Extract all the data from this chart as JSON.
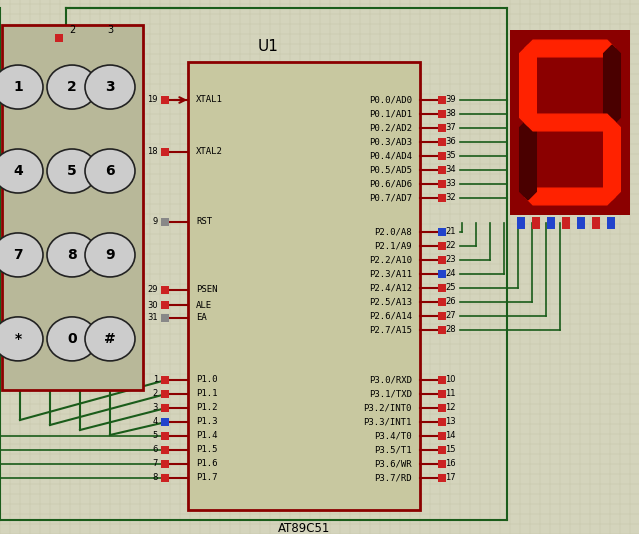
{
  "bg_color": "#d4d4bc",
  "grid_color": "#c4c4aa",
  "chip_color": "#c8c8a0",
  "chip_border": "#8b0000",
  "wire_color": "#1a5c1a",
  "keypad_color": "#b8b899",
  "keypad_border": "#8b0000",
  "seg_bg_color": "#8b0000",
  "seg_on_color": "#ff2200",
  "seg_off_color": "#4a0000",
  "pin_red": "#cc2222",
  "pin_blue": "#2244cc",
  "pin_gray": "#888888",
  "text_color": "#000000",
  "chip_label": "U1",
  "chip_sublabel": "AT89C51",
  "left_pins": [
    {
      "name": "XTAL1",
      "pin": "19",
      "row": 0,
      "arrow": true
    },
    {
      "name": "XTAL2",
      "pin": "18",
      "row": 1,
      "arrow": false
    },
    {
      "name": "RST",
      "pin": "9",
      "row": 2,
      "arrow": false
    },
    {
      "name": "PSEN",
      "pin": "29",
      "row": 3,
      "overbar": true
    },
    {
      "name": "ALE",
      "pin": "30",
      "row": 4,
      "overbar": true
    },
    {
      "name": "EA",
      "pin": "31",
      "row": 5,
      "overbar": true
    },
    {
      "name": "P1.0",
      "pin": "1",
      "row": 6
    },
    {
      "name": "P1.1",
      "pin": "2",
      "row": 7
    },
    {
      "name": "P1.2",
      "pin": "3",
      "row": 8
    },
    {
      "name": "P1.3",
      "pin": "4",
      "row": 9
    },
    {
      "name": "P1.4",
      "pin": "5",
      "row": 10
    },
    {
      "name": "P1.5",
      "pin": "6",
      "row": 11
    },
    {
      "name": "P1.6",
      "pin": "7",
      "row": 12
    },
    {
      "name": "P1.7",
      "pin": "8",
      "row": 13
    }
  ],
  "right_pins": [
    {
      "name": "P0.0/AD0",
      "pin": "39",
      "row": 0,
      "group": "p0"
    },
    {
      "name": "P0.1/AD1",
      "pin": "38",
      "row": 1,
      "group": "p0"
    },
    {
      "name": "P0.2/AD2",
      "pin": "37",
      "row": 2,
      "group": "p0"
    },
    {
      "name": "P0.3/AD3",
      "pin": "36",
      "row": 3,
      "group": "p0"
    },
    {
      "name": "P0.4/AD4",
      "pin": "35",
      "row": 4,
      "group": "p0"
    },
    {
      "name": "P0.5/AD5",
      "pin": "34",
      "row": 5,
      "group": "p0"
    },
    {
      "name": "P0.6/AD6",
      "pin": "33",
      "row": 6,
      "group": "p0"
    },
    {
      "name": "P0.7/AD7",
      "pin": "32",
      "row": 7,
      "group": "p0"
    },
    {
      "name": "P2.0/A8",
      "pin": "21",
      "row": 9,
      "group": "p2"
    },
    {
      "name": "P2.1/A9",
      "pin": "22",
      "row": 10,
      "group": "p2"
    },
    {
      "name": "P2.2/A10",
      "pin": "23",
      "row": 11,
      "group": "p2"
    },
    {
      "name": "P2.3/A11",
      "pin": "24",
      "row": 12,
      "group": "p2"
    },
    {
      "name": "P2.4/A12",
      "pin": "25",
      "row": 13,
      "group": "p2"
    },
    {
      "name": "P2.5/A13",
      "pin": "26",
      "row": 14,
      "group": "p2"
    },
    {
      "name": "P2.6/A14",
      "pin": "27",
      "row": 15,
      "group": "p2"
    },
    {
      "name": "P2.7/A15",
      "pin": "28",
      "row": 16,
      "group": "p2"
    },
    {
      "name": "P3.0/RXD",
      "pin": "10",
      "row": 18,
      "group": "p3"
    },
    {
      "name": "P3.1/TXD",
      "pin": "11",
      "row": 19,
      "group": "p3"
    },
    {
      "name": "P3.2/INT0",
      "pin": "12",
      "row": 20,
      "group": "p3",
      "overbar": true
    },
    {
      "name": "P3.3/INT1",
      "pin": "13",
      "row": 21,
      "group": "p3",
      "overbar": true
    },
    {
      "name": "P3.4/T0",
      "pin": "14",
      "row": 22,
      "group": "p3"
    },
    {
      "name": "P3.5/T1",
      "pin": "15",
      "row": 23,
      "group": "p3"
    },
    {
      "name": "P3.6/WR",
      "pin": "16",
      "row": 24,
      "group": "p3",
      "overbar": true
    },
    {
      "name": "P3.7/RD",
      "pin": "17",
      "row": 25,
      "group": "p3",
      "overbar": true
    }
  ]
}
